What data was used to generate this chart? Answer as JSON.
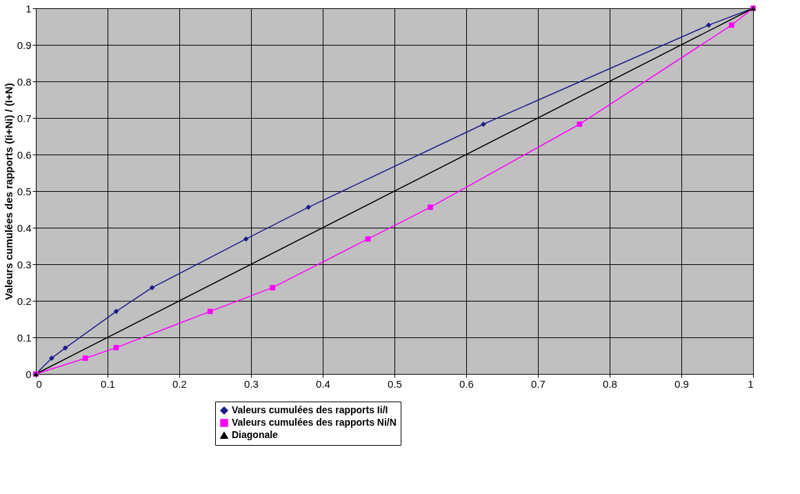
{
  "chart_data": {
    "type": "line",
    "ylabel": "Valeurs cumulées des rapports (Ii+Ni) / (I+N)",
    "xlim": [
      0,
      1
    ],
    "ylim": [
      0,
      1
    ],
    "xticks": [
      0,
      0.1,
      0.2,
      0.3,
      0.4,
      0.5,
      0.6,
      0.7,
      0.8,
      0.9,
      1
    ],
    "yticks": [
      0,
      0.1,
      0.2,
      0.3,
      0.4,
      0.5,
      0.6,
      0.7,
      0.8,
      0.9,
      1
    ],
    "grid": true,
    "legend": "bottom",
    "line_style": "solid",
    "series": [
      {
        "name": "Valeurs cumulées des rapports Ii/I",
        "color": "#1c1c8c",
        "marker": "diamond",
        "x": [
          0,
          0.022,
          0.041,
          0.112,
          0.162,
          0.293,
          0.38,
          0.624,
          0.938,
          1
        ],
        "values": [
          0,
          0.043,
          0.071,
          0.171,
          0.236,
          0.369,
          0.456,
          0.683,
          0.954,
          1
        ]
      },
      {
        "name": "Valeurs cumulées des rapports Ni/N",
        "color": "#ff00ff",
        "marker": "square",
        "x": [
          0,
          0.069,
          0.112,
          0.243,
          0.33,
          0.463,
          0.55,
          0.758,
          0.97,
          1
        ],
        "values": [
          0,
          0.043,
          0.072,
          0.171,
          0.236,
          0.369,
          0.456,
          0.683,
          0.954,
          1
        ]
      },
      {
        "name": "Diagonale",
        "color": "#000000",
        "marker": "triangle",
        "x": [
          0,
          1
        ],
        "values": [
          0,
          1
        ]
      }
    ]
  }
}
